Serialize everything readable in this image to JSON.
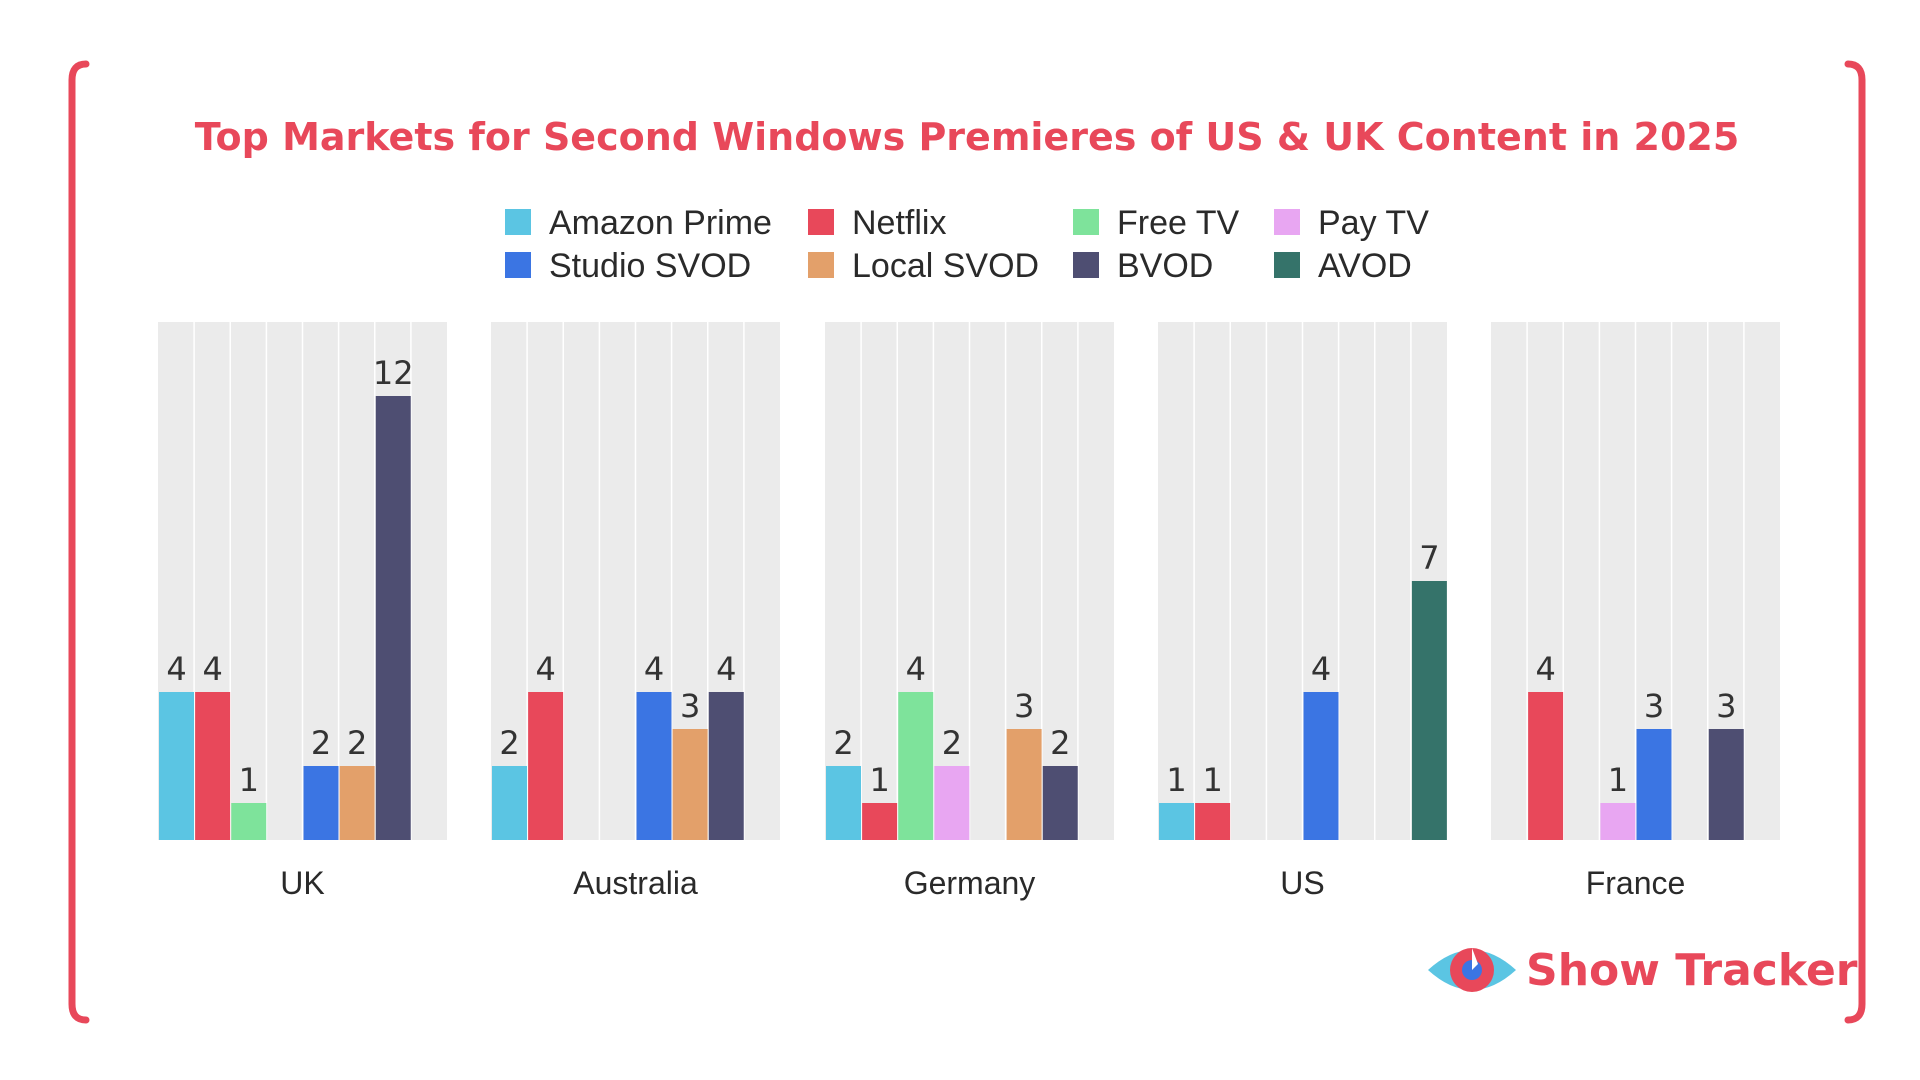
{
  "colors": {
    "accent": "#e8485a",
    "panel_background": "#ebebeb"
  },
  "logo": {
    "text": "Show Tracker",
    "icon": "eye-icon"
  },
  "chart_data": {
    "type": "bar",
    "title": "Top Markets for Second Windows Premieres of US & UK Content in 2025",
    "xlabel": "",
    "ylabel": "",
    "ylim": [
      0,
      13
    ],
    "grid": true,
    "legend_position": "top-center",
    "categories": [
      "UK",
      "Australia",
      "Germany",
      "US",
      "France"
    ],
    "series": [
      {
        "name": "Amazon Prime",
        "color": "#5bc5e3",
        "values": [
          4,
          2,
          2,
          1,
          0
        ]
      },
      {
        "name": "Netflix",
        "color": "#e8485a",
        "values": [
          4,
          4,
          1,
          1,
          4
        ]
      },
      {
        "name": "Free TV",
        "color": "#7ee39b",
        "values": [
          1,
          0,
          4,
          0,
          0
        ]
      },
      {
        "name": "Pay TV",
        "color": "#e8a6f2",
        "values": [
          0,
          0,
          2,
          0,
          1
        ]
      },
      {
        "name": "Studio SVOD",
        "color": "#3b75e3",
        "values": [
          2,
          4,
          0,
          4,
          3
        ]
      },
      {
        "name": "Local SVOD",
        "color": "#e3a06a",
        "values": [
          2,
          3,
          3,
          0,
          0
        ]
      },
      {
        "name": "BVOD",
        "color": "#4e4e72",
        "values": [
          12,
          4,
          2,
          0,
          3
        ]
      },
      {
        "name": "AVOD",
        "color": "#35736a",
        "values": [
          0,
          0,
          0,
          7,
          0
        ]
      }
    ],
    "legend_order": [
      "Amazon Prime",
      "Netflix",
      "Free TV",
      "Pay TV",
      "Studio SVOD",
      "Local SVOD",
      "BVOD",
      "AVOD"
    ]
  }
}
